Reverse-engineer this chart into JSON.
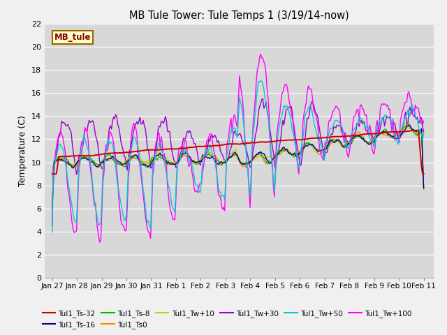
{
  "title": "MB Tule Tower: Tule Temps 1 (3/19/14-now)",
  "ylabel": "Temperature (C)",
  "ylim": [
    0,
    22
  ],
  "yticks": [
    0,
    2,
    4,
    6,
    8,
    10,
    12,
    14,
    16,
    18,
    20,
    22
  ],
  "bg_color": "#d8d8d8",
  "fig_color": "#f0f0f0",
  "legend_label": "MB_tule",
  "legend_bg": "#ffffcc",
  "legend_border": "#996600",
  "series_colors": {
    "Tul1_Ts-32": "#cc0000",
    "Tul1_Ts-16": "#000099",
    "Tul1_Ts-8": "#00bb00",
    "Tul1_Ts0": "#ff8800",
    "Tul1_Tw+10": "#cccc00",
    "Tul1_Tw+30": "#9900cc",
    "Tul1_Tw+50": "#00cccc",
    "Tul1_Tw+100": "#ff00ff"
  },
  "xtick_labels": [
    "Jan 27",
    "Jan 28",
    "Jan 29",
    "Jan 30",
    "Jan 31",
    "Feb 1",
    "Feb 2",
    "Feb 3",
    "Feb 4",
    "Feb 5",
    "Feb 6",
    "Feb 7",
    "Feb 8",
    "Feb 9",
    "Feb 10",
    "Feb 11"
  ]
}
